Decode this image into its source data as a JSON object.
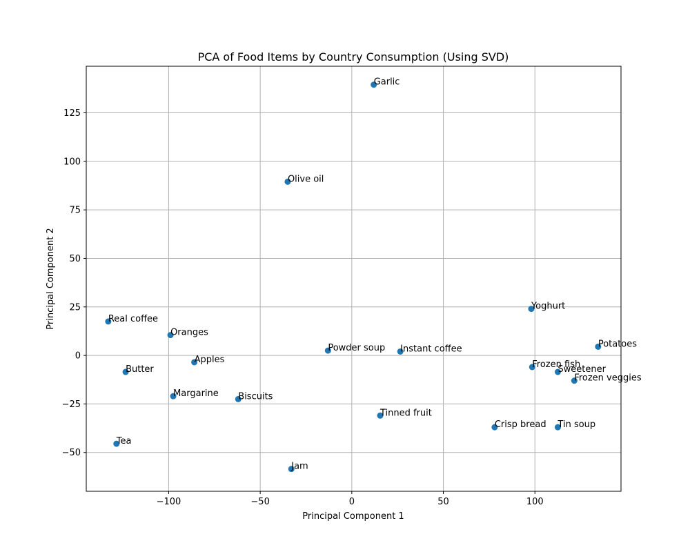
{
  "chart_data": {
    "type": "scatter",
    "title": "PCA of Food Items by Country Consumption (Using SVD)",
    "xlabel": "Principal Component 1",
    "ylabel": "Principal Component 2",
    "xlim": [
      -145,
      147
    ],
    "ylim": [
      -70,
      149
    ],
    "xticks": [
      -100,
      -50,
      0,
      50,
      100
    ],
    "yticks": [
      -50,
      -25,
      0,
      25,
      50,
      75,
      100,
      125
    ],
    "grid": true,
    "marker_color": "#1f77b4",
    "points": [
      {
        "label": "Garlic",
        "x": 12,
        "y": 139.5
      },
      {
        "label": "Olive oil",
        "x": -35,
        "y": 89.5
      },
      {
        "label": "Yoghurt",
        "x": 98,
        "y": 24
      },
      {
        "label": "Real coffee",
        "x": -133,
        "y": 17.5
      },
      {
        "label": "Oranges",
        "x": -99,
        "y": 10.5
      },
      {
        "label": "Potatoes",
        "x": 134.5,
        "y": 4.5
      },
      {
        "label": "Powder soup",
        "x": -13,
        "y": 2.5
      },
      {
        "label": "Instant coffee",
        "x": 26.5,
        "y": 2
      },
      {
        "label": "Apples",
        "x": -86,
        "y": -3.5
      },
      {
        "label": "Frozen fish",
        "x": 98.5,
        "y": -6
      },
      {
        "label": "Butter",
        "x": -123.5,
        "y": -8.5
      },
      {
        "label": "Sweetener",
        "x": 112.5,
        "y": -8.5
      },
      {
        "label": "Frozen veggies",
        "x": 121.5,
        "y": -13
      },
      {
        "label": "Margarine",
        "x": -97.5,
        "y": -21
      },
      {
        "label": "Biscuits",
        "x": -62,
        "y": -22.5
      },
      {
        "label": "Tinned fruit",
        "x": 15.5,
        "y": -31
      },
      {
        "label": "Crisp bread",
        "x": 78,
        "y": -37
      },
      {
        "label": "Tin soup",
        "x": 112.5,
        "y": -37
      },
      {
        "label": "Tea",
        "x": -128.5,
        "y": -45.5
      },
      {
        "label": "Jam",
        "x": -33,
        "y": -58.5
      }
    ]
  }
}
